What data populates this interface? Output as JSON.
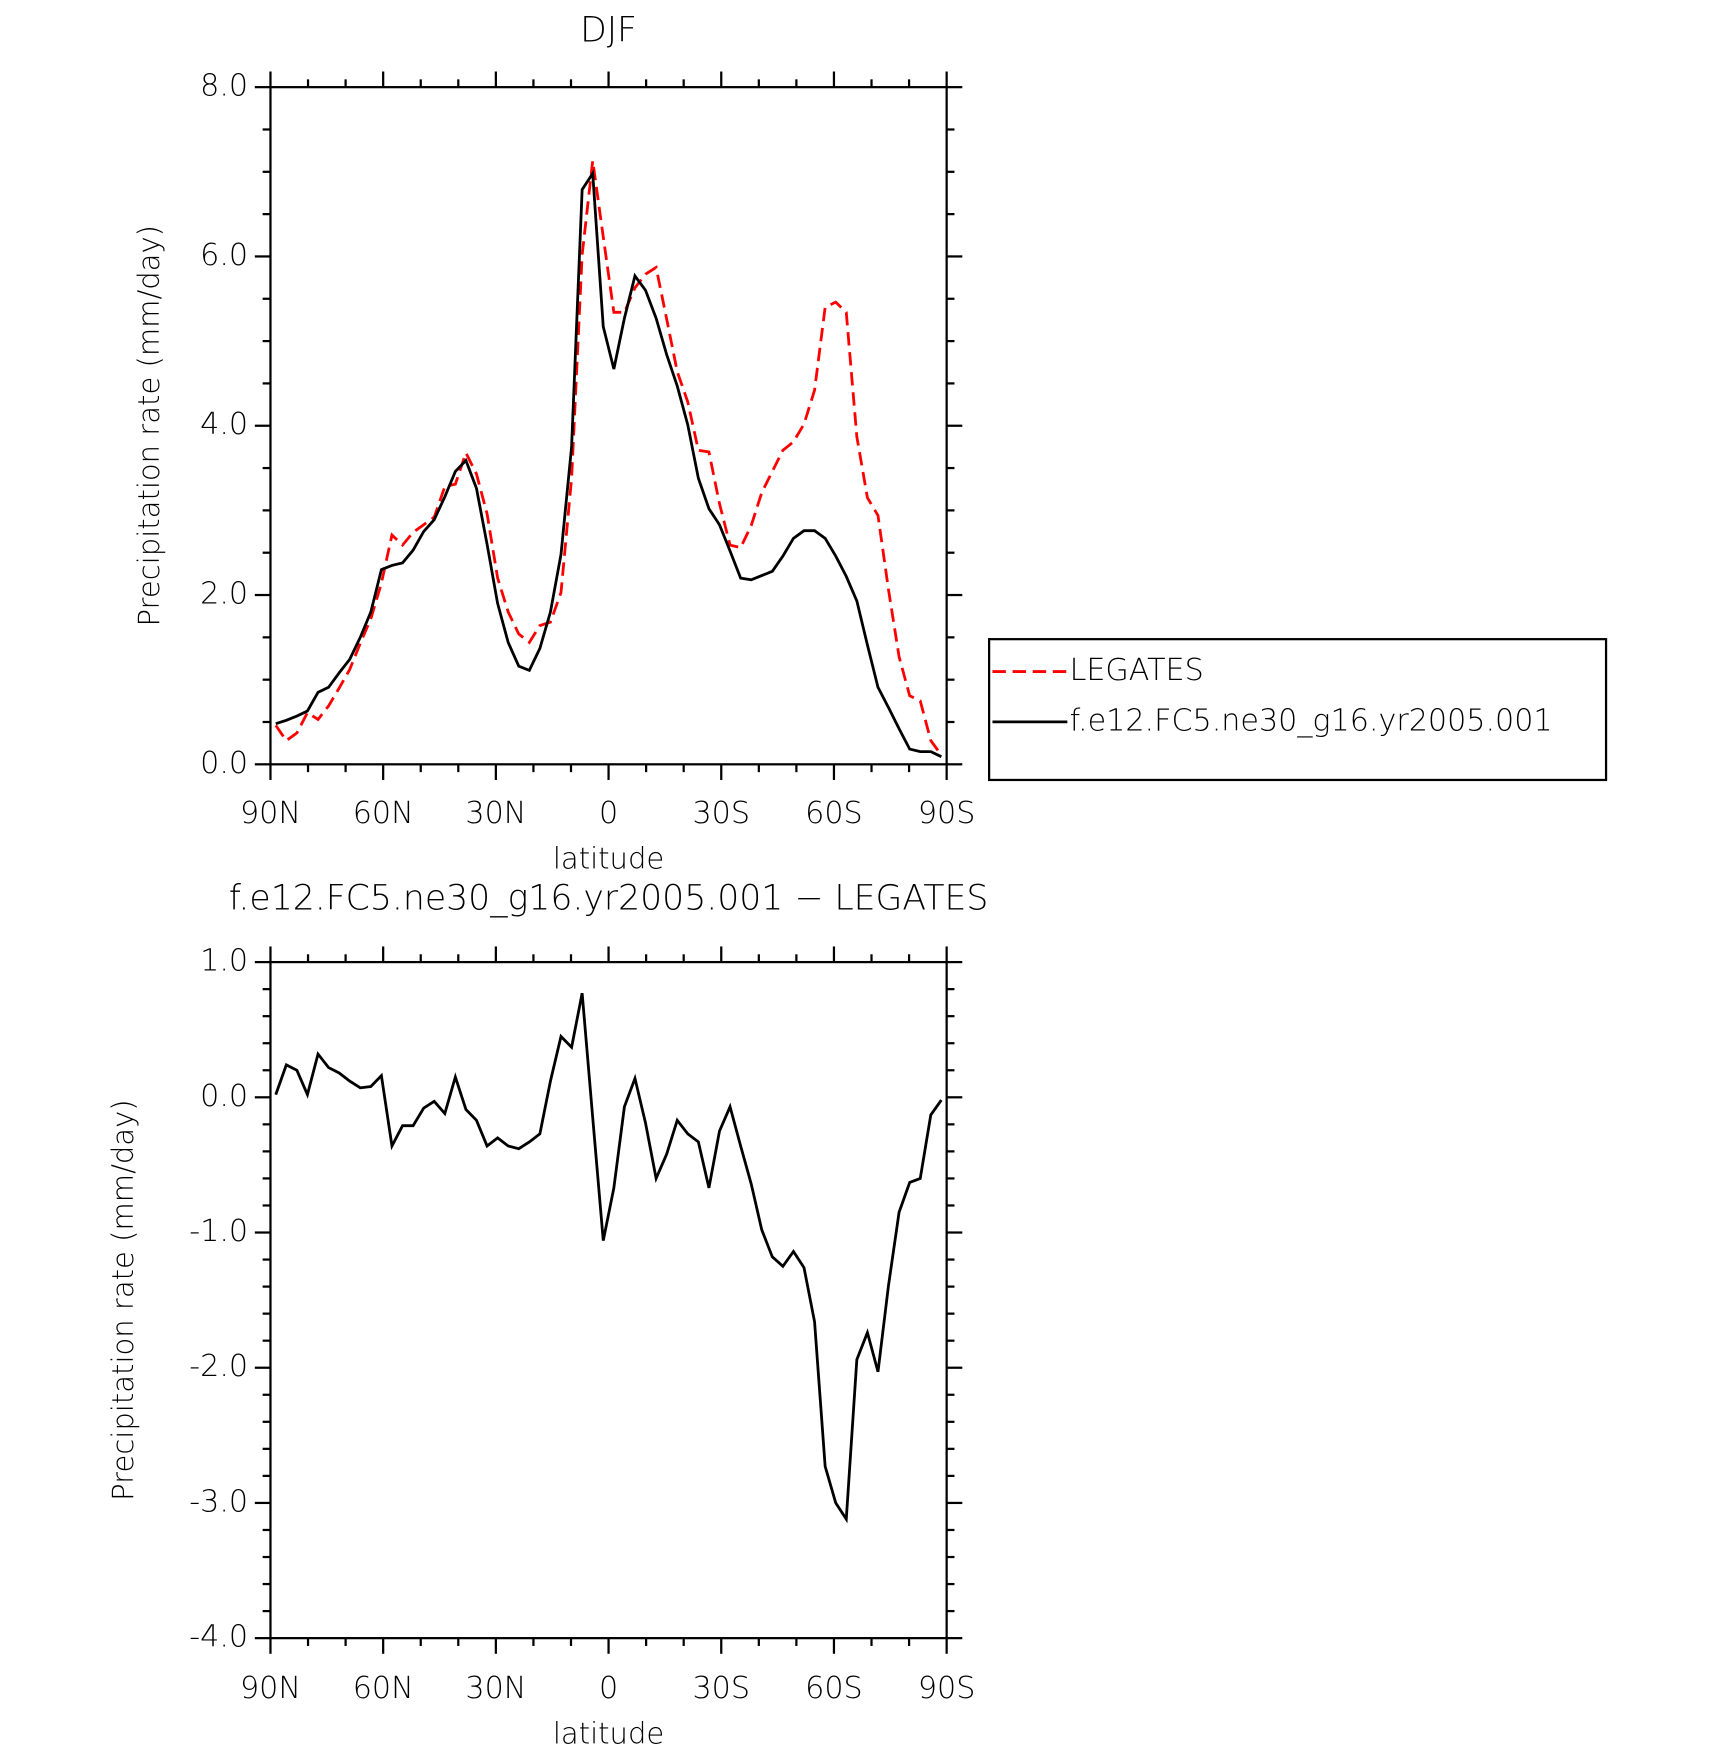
{
  "chart_data": [
    {
      "type": "line",
      "title": "DJF",
      "xlabel": "latitude",
      "ylabel": "Precipitation rate (mm/day)",
      "x": [
        88.59,
        85.78,
        82.97,
        80.16,
        77.34,
        74.53,
        71.72,
        68.91,
        66.09,
        63.28,
        60.47,
        57.66,
        54.84,
        52.03,
        49.22,
        46.41,
        43.59,
        40.78,
        37.97,
        35.16,
        32.34,
        29.53,
        26.72,
        23.91,
        21.09,
        18.28,
        15.47,
        12.66,
        9.84,
        7.03,
        4.22,
        1.41,
        -1.41,
        -4.22,
        -7.03,
        -9.84,
        -12.66,
        -15.47,
        -18.28,
        -21.09,
        -23.91,
        -26.72,
        -29.53,
        -32.34,
        -35.16,
        -37.97,
        -40.78,
        -43.59,
        -46.41,
        -49.22,
        -52.03,
        -54.84,
        -57.66,
        -60.47,
        -63.28,
        -66.09,
        -68.91,
        -71.72,
        -74.53,
        -77.34,
        -80.16,
        -82.97,
        -85.78,
        -88.59
      ],
      "series": [
        {
          "name": "LEGATES",
          "color": "#ff0000",
          "style": "dashed",
          "values": [
            0.46,
            0.28,
            0.37,
            0.61,
            0.53,
            0.69,
            0.9,
            1.12,
            1.43,
            1.72,
            2.14,
            2.71,
            2.59,
            2.74,
            2.83,
            2.92,
            3.28,
            3.31,
            3.68,
            3.43,
            2.96,
            2.2,
            1.8,
            1.54,
            1.44,
            1.64,
            1.68,
            2.03,
            3.38,
            6.02,
            7.13,
            6.23,
            5.34,
            5.34,
            5.63,
            5.79,
            5.87,
            5.26,
            4.64,
            4.28,
            3.71,
            3.69,
            3.08,
            2.59,
            2.56,
            2.82,
            3.21,
            3.46,
            3.71,
            3.81,
            4.02,
            4.42,
            5.4,
            5.46,
            5.34,
            3.87,
            3.15,
            2.94,
            2.06,
            1.27,
            0.81,
            0.75,
            0.28,
            0.11
          ]
        },
        {
          "name": "f.e12.FC5.ne30_g16.yr2005.001",
          "color": "#000000",
          "style": "solid",
          "values": [
            0.48,
            0.52,
            0.57,
            0.63,
            0.85,
            0.91,
            1.08,
            1.24,
            1.5,
            1.8,
            2.3,
            2.35,
            2.38,
            2.53,
            2.75,
            2.89,
            3.16,
            3.46,
            3.59,
            3.26,
            2.6,
            1.9,
            1.44,
            1.16,
            1.11,
            1.37,
            1.8,
            2.48,
            3.75,
            6.79,
            6.98,
            5.17,
            4.67,
            5.27,
            5.77,
            5.6,
            5.27,
            4.84,
            4.47,
            4.01,
            3.38,
            3.02,
            2.83,
            2.52,
            2.2,
            2.18,
            2.23,
            2.28,
            2.46,
            2.67,
            2.76,
            2.76,
            2.67,
            2.46,
            2.22,
            1.93,
            1.41,
            0.91,
            0.67,
            0.42,
            0.18,
            0.15,
            0.15,
            0.09
          ]
        }
      ],
      "xlim": [
        90,
        -90
      ],
      "xticks": [
        {
          "value": 90,
          "label": "90N"
        },
        {
          "value": 60,
          "label": "60N"
        },
        {
          "value": 30,
          "label": "30N"
        },
        0,
        {
          "value": -30,
          "label": "30S"
        },
        {
          "value": -60,
          "label": "60S"
        },
        {
          "value": -90,
          "label": "90S"
        }
      ],
      "ylim": [
        0,
        8
      ],
      "yticks": [
        {
          "value": 0,
          "label": "0.0"
        },
        {
          "value": 2,
          "label": "2.0"
        },
        {
          "value": 4,
          "label": "4.0"
        },
        {
          "value": 6,
          "label": "6.0"
        },
        {
          "value": 8,
          "label": "8.0"
        }
      ],
      "legend": "right"
    },
    {
      "type": "line",
      "title": "f.e12.FC5.ne30_g16.yr2005.001 − LEGATES",
      "xlabel": "latitude",
      "ylabel": "Precipitation rate (mm/day)",
      "x": [
        88.59,
        85.78,
        82.97,
        80.16,
        77.34,
        74.53,
        71.72,
        68.91,
        66.09,
        63.28,
        60.47,
        57.66,
        54.84,
        52.03,
        49.22,
        46.41,
        43.59,
        40.78,
        37.97,
        35.16,
        32.34,
        29.53,
        26.72,
        23.91,
        21.09,
        18.28,
        15.47,
        12.66,
        9.84,
        7.03,
        4.22,
        1.41,
        -1.41,
        -4.22,
        -7.03,
        -9.84,
        -12.66,
        -15.47,
        -18.28,
        -21.09,
        -23.91,
        -26.72,
        -29.53,
        -32.34,
        -35.16,
        -37.97,
        -40.78,
        -43.59,
        -46.41,
        -49.22,
        -52.03,
        -54.84,
        -57.66,
        -60.47,
        -63.28,
        -66.09,
        -68.91,
        -71.72,
        -74.53,
        -77.34,
        -80.16,
        -82.97,
        -85.78,
        -88.59
      ],
      "values": [
        0.02,
        0.24,
        0.2,
        0.02,
        0.32,
        0.22,
        0.18,
        0.12,
        0.07,
        0.08,
        0.16,
        -0.36,
        -0.21,
        -0.21,
        -0.08,
        -0.03,
        -0.12,
        0.15,
        -0.09,
        -0.17,
        -0.36,
        -0.3,
        -0.36,
        -0.38,
        -0.33,
        -0.27,
        0.12,
        0.45,
        0.37,
        0.77,
        -0.15,
        -1.06,
        -0.67,
        -0.07,
        0.14,
        -0.19,
        -0.6,
        -0.42,
        -0.17,
        -0.27,
        -0.33,
        -0.67,
        -0.25,
        -0.07,
        -0.36,
        -0.64,
        -0.98,
        -1.18,
        -1.25,
        -1.14,
        -1.26,
        -1.66,
        -2.73,
        -3.0,
        -3.12,
        -1.94,
        -1.74,
        -2.03,
        -1.39,
        -0.85,
        -0.63,
        -0.6,
        -0.13,
        -0.02
      ],
      "color": "#000000",
      "xlim": [
        90,
        -90
      ],
      "xticks": [
        {
          "value": 90,
          "label": "90N"
        },
        {
          "value": 60,
          "label": "60N"
        },
        {
          "value": 30,
          "label": "30N"
        },
        0,
        {
          "value": -30,
          "label": "30S"
        },
        {
          "value": -60,
          "label": "60S"
        },
        {
          "value": -90,
          "label": "90S"
        }
      ],
      "ylim": [
        -4,
        1
      ],
      "yticks": [
        {
          "value": -4,
          "label": "-4.0"
        },
        {
          "value": -3,
          "label": "-3.0"
        },
        {
          "value": -2,
          "label": "-2.0"
        },
        {
          "value": -1,
          "label": "-1.0"
        },
        {
          "value": 0,
          "label": "0.0"
        },
        {
          "value": 1,
          "label": "1.0"
        }
      ]
    }
  ]
}
